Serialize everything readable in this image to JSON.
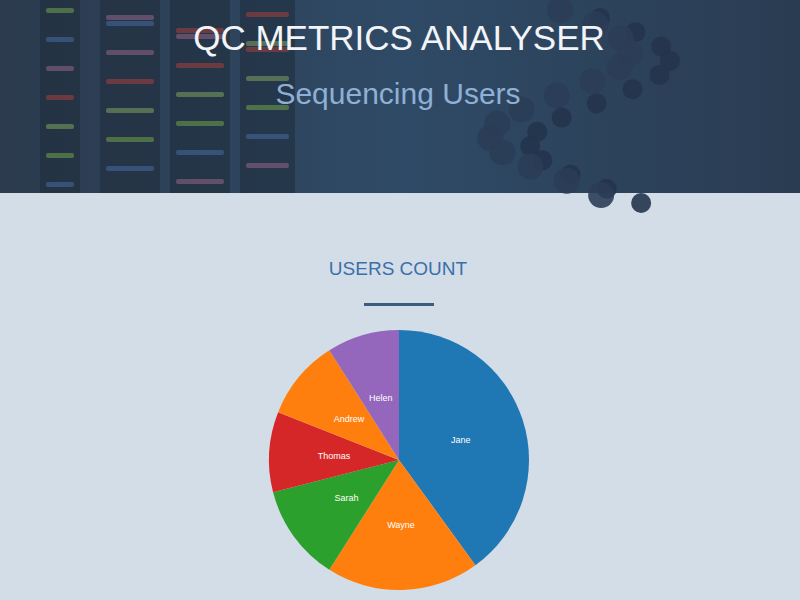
{
  "header": {
    "title": "QC METRICS ANALYSER",
    "subtitle": "Sequencing Users"
  },
  "chart_data": {
    "type": "pie",
    "title": "USERS COUNT",
    "categories": [
      "Jane",
      "Wayne",
      "Sarah",
      "Thomas",
      "Andrew",
      "Helen"
    ],
    "values": [
      40,
      19,
      12,
      10,
      10,
      9
    ],
    "colors": [
      "#1f77b4",
      "#ff7f0e",
      "#2ca02c",
      "#d62728",
      "#ff7f0e",
      "#9467bd"
    ]
  }
}
